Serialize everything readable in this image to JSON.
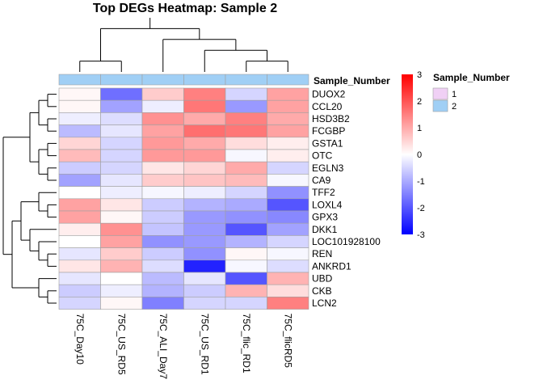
{
  "chart_data": {
    "type": "heatmap",
    "title": "Top DEGs Heatmap: Sample 2",
    "columns": [
      "75C_Day10",
      "75C_US_RD5",
      "75C_ALI_Day7",
      "75C_US_RD1",
      "75C_flic_RD1",
      "75C_flicRD5"
    ],
    "rows": [
      "DUOX2",
      "CCL20",
      "HSD3B2",
      "FCGBP",
      "GSTA1",
      "OTC",
      "EGLN3",
      "CA9",
      "TFF2",
      "LOXL4",
      "GPX3",
      "DKK1",
      "LOC101928100",
      "REN",
      "ANKRD1",
      "UBD",
      "CKB",
      "LCN2"
    ],
    "values": [
      [
        0.1,
        -1.7,
        0.6,
        1.5,
        -0.5,
        1.1
      ],
      [
        0.1,
        -1.1,
        -0.2,
        1.6,
        -1.2,
        1.1
      ],
      [
        -0.2,
        -0.4,
        1.3,
        1.0,
        1.5,
        1.0
      ],
      [
        -0.8,
        -0.3,
        1.1,
        1.7,
        1.6,
        1.1
      ],
      [
        0.5,
        -0.5,
        1.2,
        1.0,
        0.4,
        0.2
      ],
      [
        0.8,
        -0.5,
        1.2,
        1.2,
        -0.1,
        0.2
      ],
      [
        -0.6,
        -0.5,
        0.3,
        0.5,
        1.0,
        -0.5
      ],
      [
        -1.1,
        -0.3,
        0.6,
        0.7,
        0.8,
        -0.1
      ],
      [
        0.0,
        -0.2,
        -0.1,
        -0.2,
        -0.5,
        -1.3
      ],
      [
        1.1,
        0.3,
        -0.6,
        -0.9,
        -1.0,
        -2.0
      ],
      [
        1.1,
        0.1,
        -0.6,
        -1.2,
        -1.3,
        -1.4
      ],
      [
        0.2,
        1.3,
        -0.7,
        -1.2,
        -2.0,
        -1.1
      ],
      [
        0.0,
        1.1,
        -1.3,
        -1.2,
        -0.9,
        -0.5
      ],
      [
        -0.3,
        0.6,
        -0.6,
        -1.3,
        0.1,
        -0.1
      ],
      [
        0.3,
        0.9,
        -0.4,
        -2.6,
        -0.1,
        -0.4
      ],
      [
        -0.3,
        0.0,
        -0.8,
        -0.3,
        -2.0,
        0.9
      ],
      [
        -0.6,
        -0.2,
        -0.9,
        -0.6,
        0.9,
        0.4
      ],
      [
        -0.5,
        0.1,
        -1.5,
        -0.5,
        -0.5,
        1.5
      ]
    ],
    "color_scale": {
      "min": -3,
      "max": 3,
      "low": "#0000ff",
      "mid": "#ffffff",
      "high": "#ff0000",
      "ticks": [
        3,
        2,
        1,
        0,
        -1,
        -2,
        -3
      ]
    },
    "column_annotation": {
      "label": "Sample_Number",
      "values": [
        "2",
        "2",
        "2",
        "2",
        "2",
        "2"
      ]
    },
    "annotation_legend": {
      "title": "Sample_Number",
      "entries": [
        {
          "label": "1",
          "color": "#f0d0f5"
        },
        {
          "label": "2",
          "color": "#a0cff5"
        }
      ]
    },
    "column_dendrogram": "(((75C_Day10,75C_US_RD5),(75C_ALI_Day7,(75C_US_RD1,(75C_flic_RD1,75C_flicRD5)))))",
    "row_dendrogram": "((((DUOX2,CCL20),(HSD3B2,FCGBP)),((GSTA1,OTC),(EGLN3,CA9))),(((TFF2,(LOXL4,GPX3)),(DKK1,(LOC101928100,(REN,ANKRD1)))),(UBD,(CKB,LCN2))))"
  }
}
